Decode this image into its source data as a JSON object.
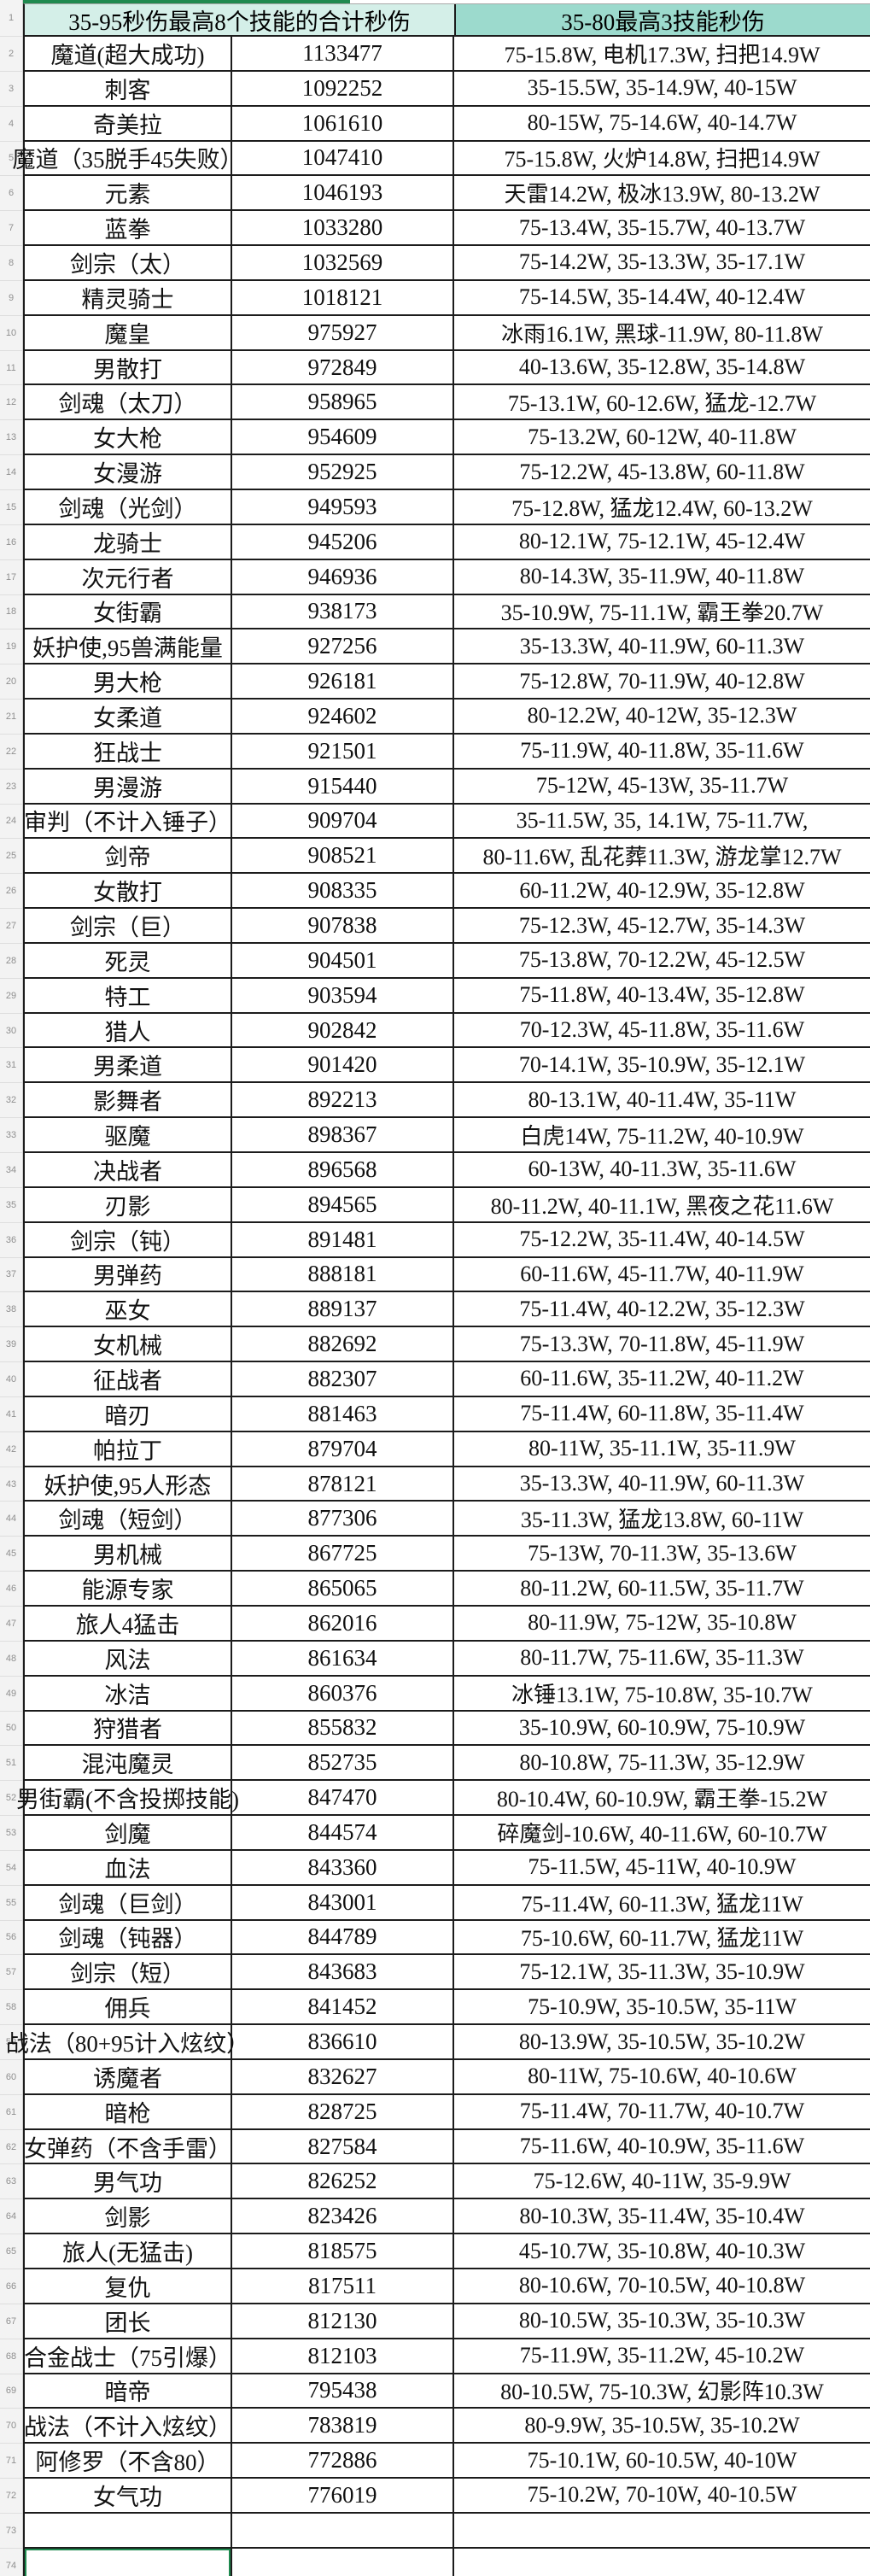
{
  "colors": {
    "header-left-bg": "#d4efe8",
    "header-right-bg": "#9cdacd",
    "select-green": "#1f8a4f",
    "gutter-bg": "#f3f3f3",
    "line": "#1c1c1c"
  },
  "header": {
    "row_number": "1",
    "col_ab": "35-95秒伤最高8个技能的合计秒伤",
    "col_c": "35-80最高3技能秒伤"
  },
  "rows": [
    {
      "num": 2,
      "name": "魔道(超大成功)",
      "total": "1133477",
      "skills": "75-15.8W, 电机17.3W, 扫把14.9W"
    },
    {
      "num": 3,
      "name": "刺客",
      "total": "1092252",
      "skills": "35-15.5W, 35-14.9W, 40-15W"
    },
    {
      "num": 4,
      "name": "奇美拉",
      "total": "1061610",
      "skills": "80-15W, 75-14.6W, 40-14.7W"
    },
    {
      "num": 5,
      "name": "魔道（35脱手45失败）",
      "total": "1047410",
      "skills": "75-15.8W, 火炉14.8W, 扫把14.9W"
    },
    {
      "num": 6,
      "name": "元素",
      "total": "1046193",
      "skills": "天雷14.2W, 极冰13.9W, 80-13.2W"
    },
    {
      "num": 7,
      "name": "蓝拳",
      "total": "1033280",
      "skills": "75-13.4W, 35-15.7W, 40-13.7W"
    },
    {
      "num": 8,
      "name": "剑宗（太）",
      "total": "1032569",
      "skills": "75-14.2W, 35-13.3W, 35-17.1W"
    },
    {
      "num": 9,
      "name": "精灵骑士",
      "total": "1018121",
      "skills": "75-14.5W, 35-14.4W, 40-12.4W"
    },
    {
      "num": 10,
      "name": "魔皇",
      "total": "975927",
      "skills": "冰雨16.1W, 黑球-11.9W, 80-11.8W"
    },
    {
      "num": 11,
      "name": "男散打",
      "total": "972849",
      "skills": "40-13.6W, 35-12.8W, 35-14.8W"
    },
    {
      "num": 12,
      "name": "剑魂（太刀）",
      "total": "958965",
      "skills": "75-13.1W, 60-12.6W, 猛龙-12.7W"
    },
    {
      "num": 13,
      "name": "女大枪",
      "total": "954609",
      "skills": "75-13.2W, 60-12W, 40-11.8W"
    },
    {
      "num": 14,
      "name": "女漫游",
      "total": "952925",
      "skills": "75-12.2W, 45-13.8W, 60-11.8W"
    },
    {
      "num": 15,
      "name": "剑魂（光剑）",
      "total": "949593",
      "skills": "75-12.8W, 猛龙12.4W, 60-13.2W"
    },
    {
      "num": 16,
      "name": "龙骑士",
      "total": "945206",
      "skills": "80-12.1W, 75-12.1W, 45-12.4W"
    },
    {
      "num": 17,
      "name": "次元行者",
      "total": "946936",
      "skills": "80-14.3W, 35-11.9W, 40-11.8W"
    },
    {
      "num": 18,
      "name": "女街霸",
      "total": "938173",
      "skills": "35-10.9W, 75-11.1W, 霸王拳20.7W"
    },
    {
      "num": 19,
      "name": "妖护使,95兽满能量",
      "total": "927256",
      "skills": "35-13.3W, 40-11.9W, 60-11.3W"
    },
    {
      "num": 20,
      "name": "男大枪",
      "total": "926181",
      "skills": "75-12.8W, 70-11.9W, 40-12.8W"
    },
    {
      "num": 21,
      "name": "女柔道",
      "total": "924602",
      "skills": "80-12.2W, 40-12W, 35-12.3W"
    },
    {
      "num": 22,
      "name": "狂战士",
      "total": "921501",
      "skills": "75-11.9W, 40-11.8W, 35-11.6W"
    },
    {
      "num": 23,
      "name": "男漫游",
      "total": "915440",
      "skills": "75-12W, 45-13W, 35-11.7W"
    },
    {
      "num": 24,
      "name": "审判（不计入锤子）",
      "total": "909704",
      "skills": "35-11.5W, 35, 14.1W, 75-11.7W,"
    },
    {
      "num": 25,
      "name": "剑帝",
      "total": "908521",
      "skills": "80-11.6W, 乱花葬11.3W, 游龙掌12.7W"
    },
    {
      "num": 26,
      "name": "女散打",
      "total": "908335",
      "skills": "60-11.2W, 40-12.9W, 35-12.8W"
    },
    {
      "num": 27,
      "name": "剑宗（巨）",
      "total": "907838",
      "skills": "75-12.3W, 45-12.7W, 35-14.3W"
    },
    {
      "num": 28,
      "name": "死灵",
      "total": "904501",
      "skills": "75-13.8W, 70-12.2W, 45-12.5W"
    },
    {
      "num": 29,
      "name": "特工",
      "total": "903594",
      "skills": "75-11.8W, 40-13.4W, 35-12.8W"
    },
    {
      "num": 30,
      "name": "猎人",
      "total": "902842",
      "skills": "70-12.3W, 45-11.8W, 35-11.6W"
    },
    {
      "num": 31,
      "name": "男柔道",
      "total": "901420",
      "skills": "70-14.1W, 35-10.9W, 35-12.1W"
    },
    {
      "num": 32,
      "name": "影舞者",
      "total": "892213",
      "skills": "80-13.1W, 40-11.4W, 35-11W"
    },
    {
      "num": 33,
      "name": "驱魔",
      "total": "898367",
      "skills": "白虎14W, 75-11.2W, 40-10.9W"
    },
    {
      "num": 34,
      "name": "决战者",
      "total": "896568",
      "skills": "60-13W, 40-11.3W, 35-11.6W"
    },
    {
      "num": 35,
      "name": "刃影",
      "total": "894565",
      "skills": "80-11.2W, 40-11.1W, 黑夜之花11.6W"
    },
    {
      "num": 36,
      "name": "剑宗（钝）",
      "total": "891481",
      "skills": "75-12.2W, 35-11.4W, 40-14.5W"
    },
    {
      "num": 37,
      "name": "男弹药",
      "total": "888181",
      "skills": "60-11.6W, 45-11.7W, 40-11.9W"
    },
    {
      "num": 38,
      "name": "巫女",
      "total": "889137",
      "skills": "75-11.4W, 40-12.2W, 35-12.3W"
    },
    {
      "num": 39,
      "name": "女机械",
      "total": "882692",
      "skills": "75-13.3W, 70-11.8W, 45-11.9W"
    },
    {
      "num": 40,
      "name": "征战者",
      "total": "882307",
      "skills": "60-11.6W, 35-11.2W, 40-11.2W"
    },
    {
      "num": 41,
      "name": "暗刃",
      "total": "881463",
      "skills": "75-11.4W, 60-11.8W, 35-11.4W"
    },
    {
      "num": 42,
      "name": "帕拉丁",
      "total": "879704",
      "skills": "80-11W, 35-11.1W, 35-11.9W"
    },
    {
      "num": 43,
      "name": "妖护使,95人形态",
      "total": "878121",
      "skills": "35-13.3W, 40-11.9W, 60-11.3W"
    },
    {
      "num": 44,
      "name": "剑魂（短剑）",
      "total": "877306",
      "skills": "35-11.3W, 猛龙13.8W, 60-11W"
    },
    {
      "num": 45,
      "name": "男机械",
      "total": "867725",
      "skills": "75-13W, 70-11.3W, 35-13.6W"
    },
    {
      "num": 46,
      "name": "能源专家",
      "total": "865065",
      "skills": "80-11.2W, 60-11.5W, 35-11.7W"
    },
    {
      "num": 47,
      "name": "旅人4猛击",
      "total": "862016",
      "skills": "80-11.9W, 75-12W, 35-10.8W"
    },
    {
      "num": 48,
      "name": "风法",
      "total": "861634",
      "skills": "80-11.7W, 75-11.6W, 35-11.3W"
    },
    {
      "num": 49,
      "name": "冰洁",
      "total": "860376",
      "skills": "冰锤13.1W, 75-10.8W, 35-10.7W"
    },
    {
      "num": 50,
      "name": "狩猎者",
      "total": "855832",
      "skills": "35-10.9W, 60-10.9W, 75-10.9W"
    },
    {
      "num": 51,
      "name": "混沌魔灵",
      "total": "852735",
      "skills": "80-10.8W, 75-11.3W, 35-12.9W"
    },
    {
      "num": 52,
      "name": "男街霸(不含投掷技能)",
      "total": "847470",
      "skills": "80-10.4W, 60-10.9W, 霸王拳-15.2W"
    },
    {
      "num": 53,
      "name": "剑魔",
      "total": "844574",
      "skills": "碎魔剑-10.6W, 40-11.6W, 60-10.7W"
    },
    {
      "num": 54,
      "name": "血法",
      "total": "843360",
      "skills": "75-11.5W, 45-11W, 40-10.9W"
    },
    {
      "num": 55,
      "name": "剑魂（巨剑）",
      "total": "843001",
      "skills": "75-11.4W, 60-11.3W, 猛龙11W"
    },
    {
      "num": 56,
      "name": "剑魂（钝器）",
      "total": "844789",
      "skills": "75-10.6W, 60-11.7W, 猛龙11W"
    },
    {
      "num": 57,
      "name": "剑宗（短）",
      "total": "843683",
      "skills": "75-12.1W, 35-11.3W, 35-10.9W"
    },
    {
      "num": 58,
      "name": "佣兵",
      "total": "841452",
      "skills": "75-10.9W, 35-10.5W, 35-11W"
    },
    {
      "num": 59,
      "name": "战法（80+95计入炫纹）",
      "total": "836610",
      "skills": "80-13.9W, 35-10.5W, 35-10.2W"
    },
    {
      "num": 60,
      "name": "诱魔者",
      "total": "832627",
      "skills": "80-11W, 75-10.6W, 40-10.6W"
    },
    {
      "num": 61,
      "name": "暗枪",
      "total": "828725",
      "skills": "75-11.4W, 70-11.7W, 40-10.7W"
    },
    {
      "num": 62,
      "name": "女弹药（不含手雷）",
      "total": "827584",
      "skills": "75-11.6W, 40-10.9W, 35-11.6W"
    },
    {
      "num": 63,
      "name": "男气功",
      "total": "826252",
      "skills": "75-12.6W, 40-11W, 35-9.9W"
    },
    {
      "num": 64,
      "name": "剑影",
      "total": "823426",
      "skills": "80-10.3W, 35-11.4W, 35-10.4W"
    },
    {
      "num": 65,
      "name": "旅人(无猛击)",
      "total": "818575",
      "skills": "45-10.7W, 35-10.8W, 40-10.3W"
    },
    {
      "num": 66,
      "name": "复仇",
      "total": "817511",
      "skills": "80-10.6W, 70-10.5W, 40-10.8W"
    },
    {
      "num": 67,
      "name": "团长",
      "total": "812130",
      "skills": "80-10.5W, 35-10.3W, 35-10.3W"
    },
    {
      "num": 68,
      "name": "合金战士（75引爆）",
      "total": "812103",
      "skills": "75-11.9W, 35-11.2W, 45-10.2W"
    },
    {
      "num": 69,
      "name": "暗帝",
      "total": "795438",
      "skills": "80-10.5W, 75-10.3W, 幻影阵10.3W"
    },
    {
      "num": 70,
      "name": "战法（不计入炫纹）",
      "total": "783819",
      "skills": "80-9.9W, 35-10.5W, 35-10.2W"
    },
    {
      "num": 71,
      "name": "阿修罗（不含80）",
      "total": "772886",
      "skills": "75-10.1W, 60-10.5W, 40-10W"
    },
    {
      "num": 72,
      "name": "女气功",
      "total": "776019",
      "skills": "75-10.2W, 70-10W, 40-10.5W"
    },
    {
      "num": 73,
      "name": "",
      "total": "",
      "skills": ""
    },
    {
      "num": 74,
      "name": "",
      "total": "",
      "skills": "",
      "selected": true
    }
  ]
}
